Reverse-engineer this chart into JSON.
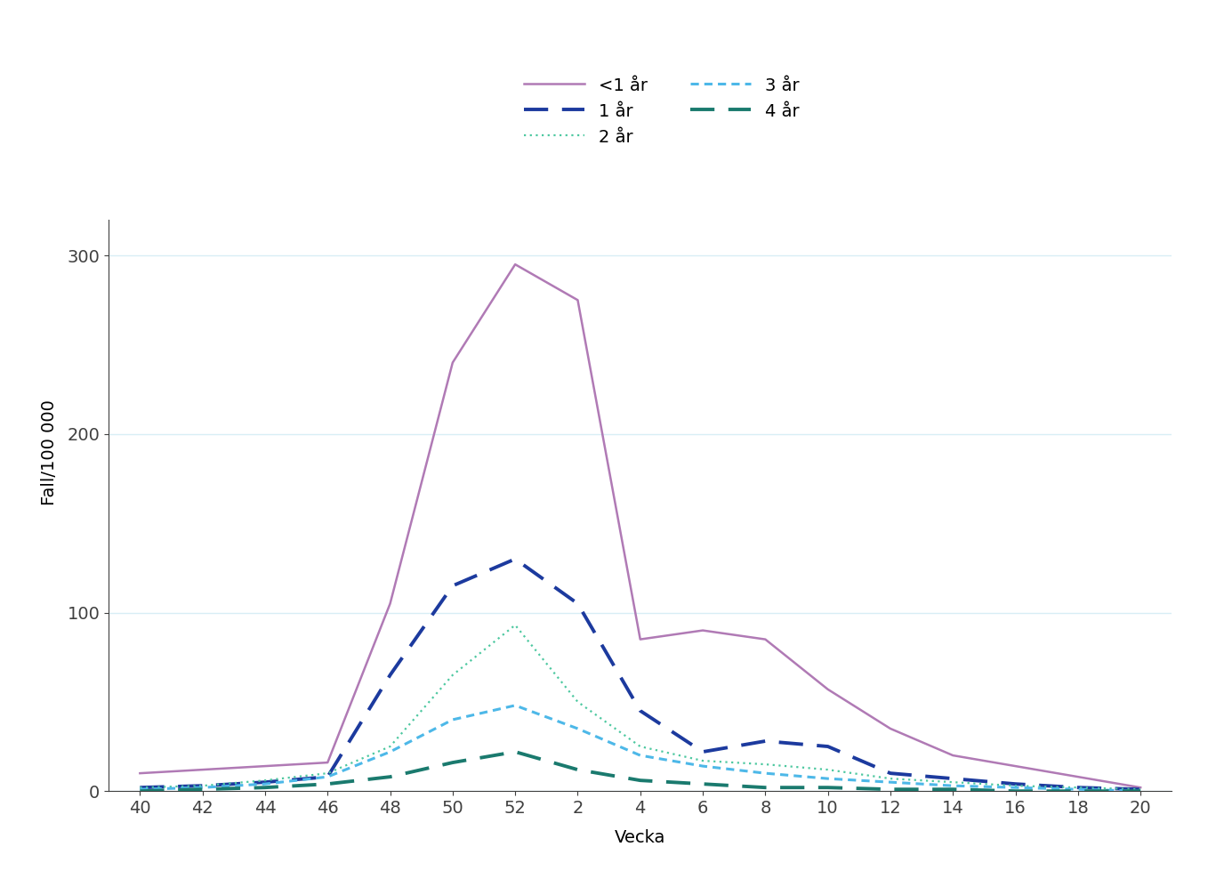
{
  "x_labels": [
    "40",
    "42",
    "44",
    "46",
    "48",
    "50",
    "52",
    "2",
    "4",
    "6",
    "8",
    "10",
    "12",
    "14",
    "16",
    "18",
    "20"
  ],
  "x_positions": [
    0,
    1,
    2,
    3,
    4,
    5,
    6,
    7,
    8,
    9,
    10,
    11,
    12,
    13,
    14,
    15,
    16
  ],
  "series_order": [
    "<1 år",
    "1 år",
    "2 år",
    "3 år",
    "4 år"
  ],
  "series": {
    "<1 år": {
      "color": "#b07ab5",
      "linestyle": "solid",
      "linewidth": 1.8,
      "values": [
        10,
        12,
        14,
        16,
        105,
        240,
        295,
        275,
        85,
        90,
        85,
        57,
        35,
        20,
        14,
        8,
        2
      ]
    },
    "1 år": {
      "color": "#1c3a9e",
      "linestyle": "dashed_long",
      "linewidth": 2.8,
      "values": [
        2,
        3,
        5,
        8,
        65,
        115,
        130,
        105,
        45,
        22,
        28,
        25,
        10,
        7,
        4,
        2,
        1
      ]
    },
    "2 år": {
      "color": "#4dc8a0",
      "linestyle": "dotted_fine",
      "linewidth": 1.6,
      "values": [
        2,
        3,
        6,
        10,
        25,
        65,
        93,
        50,
        25,
        17,
        15,
        12,
        7,
        5,
        3,
        2,
        1
      ]
    },
    "3 år": {
      "color": "#4db8e8",
      "linestyle": "dotted_med",
      "linewidth": 2.2,
      "values": [
        1,
        2,
        4,
        8,
        22,
        40,
        48,
        35,
        20,
        14,
        10,
        7,
        5,
        3,
        2,
        1,
        0
      ]
    },
    "4 år": {
      "color": "#1a7a6e",
      "linestyle": "dashed_long",
      "linewidth": 2.8,
      "values": [
        0,
        1,
        2,
        4,
        8,
        16,
        22,
        12,
        6,
        4,
        2,
        2,
        1,
        1,
        0,
        0,
        0
      ]
    }
  },
  "ylabel": "Fall/100 000",
  "xlabel": "Vecka",
  "ylim": [
    0,
    320
  ],
  "yticks": [
    0,
    100,
    200,
    300
  ],
  "grid_color": "#d8eef5",
  "background_color": "#ffffff",
  "tick_fontsize": 14,
  "axis_label_fontsize": 14,
  "legend_fontsize": 14
}
